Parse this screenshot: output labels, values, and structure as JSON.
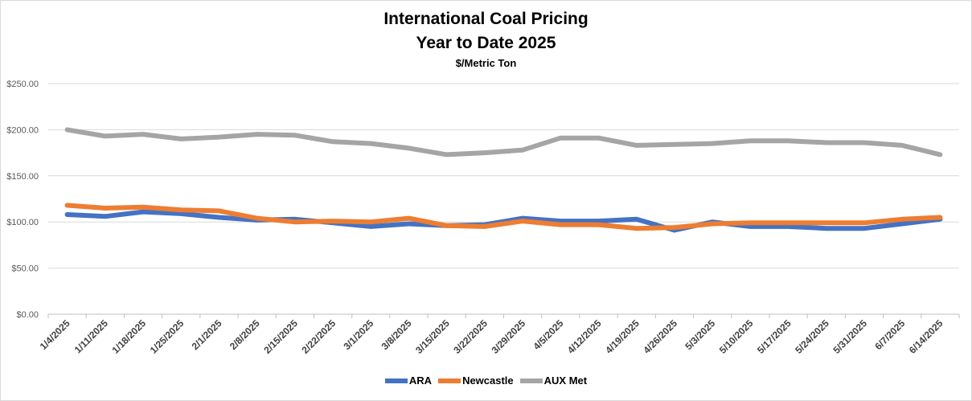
{
  "chart_data": {
    "type": "line",
    "title": "International Coal Pricing",
    "subtitle": "Year to Date 2025",
    "unit_label": "$/Metric Ton",
    "xlabel": "",
    "ylabel": "",
    "ylim": [
      0,
      250
    ],
    "yticks": [
      "$0.00",
      "$50.00",
      "$100.00",
      "$150.00",
      "$200.00",
      "$250.00"
    ],
    "grid": true,
    "legend_position": "bottom",
    "categories": [
      "1/4/2025",
      "1/11/2025",
      "1/18/2025",
      "1/25/2025",
      "2/1/2025",
      "2/8/2025",
      "2/15/2025",
      "2/22/2025",
      "3/1/2025",
      "3/8/2025",
      "3/15/2025",
      "3/22/2025",
      "3/29/2025",
      "4/5/2025",
      "4/12/2025",
      "4/19/2025",
      "4/26/2025",
      "5/3/2025",
      "5/10/2025",
      "5/17/2025",
      "5/24/2025",
      "5/31/2025",
      "6/7/2025",
      "6/14/2025"
    ],
    "series": [
      {
        "name": "ARA",
        "color": "#4472C4",
        "values": [
          108,
          106,
          111,
          109,
          105,
          102,
          103,
          99,
          95,
          98,
          96,
          97,
          104,
          101,
          101,
          103,
          91,
          100,
          95,
          95,
          93,
          93,
          98,
          103
        ]
      },
      {
        "name": "Newcastle",
        "color": "#ED7D31",
        "values": [
          118,
          115,
          116,
          113,
          112,
          104,
          100,
          101,
          100,
          104,
          96,
          95,
          101,
          97,
          97,
          93,
          94,
          98,
          99,
          99,
          99,
          99,
          103,
          105
        ]
      },
      {
        "name": "AUX Met",
        "color": "#A5A5A5",
        "values": [
          200,
          193,
          195,
          190,
          192,
          195,
          194,
          187,
          185,
          180,
          173,
          175,
          178,
          191,
          191,
          183,
          184,
          185,
          188,
          188,
          186,
          186,
          183,
          173
        ]
      }
    ]
  }
}
